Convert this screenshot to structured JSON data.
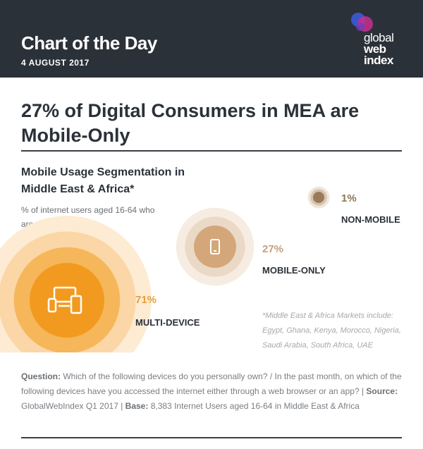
{
  "header": {
    "title": "Chart of the Day",
    "date": "4 AUGUST 2017",
    "logo": {
      "line1": "global",
      "line2": "web",
      "line3": "index"
    }
  },
  "headline": "27% of Digital Consumers in MEA are Mobile-Only",
  "subhead": "Mobile Usage Segmentation in Middle East & Africa*",
  "description": "% of internet users aged 16-64 who are...",
  "chart_data": {
    "type": "bubble",
    "series": [
      {
        "label": "MULTI-DEVICE",
        "value": 71,
        "display": "71%",
        "icon": "devices-icon",
        "color": "#f29a1f"
      },
      {
        "label": "MOBILE-ONLY",
        "value": 27,
        "display": "27%",
        "icon": "smartphone-icon",
        "color": "#d3a77a"
      },
      {
        "label": "NON-MOBILE",
        "value": 1,
        "display": "1%",
        "icon": "none",
        "color": "#9a7a5a"
      }
    ]
  },
  "note": "*Middle East & Africa Markets include: Egypt, Ghana, Kenya, Morocco, Nigeria, Saudi Arabia, South Africa, UAE",
  "footer": {
    "question_label": "Question:",
    "question_text": "Which of the following devices do you personally own? / In the past month, on which of the following devices have you accessed the internet either through a web browser or an app? |",
    "source_label": "Source:",
    "source_text": "GlobalWebIndex Q1 2017 |",
    "base_label": "Base:",
    "base_text": "8,383 Internet Users aged 16-64 in Middle East & Africa"
  }
}
